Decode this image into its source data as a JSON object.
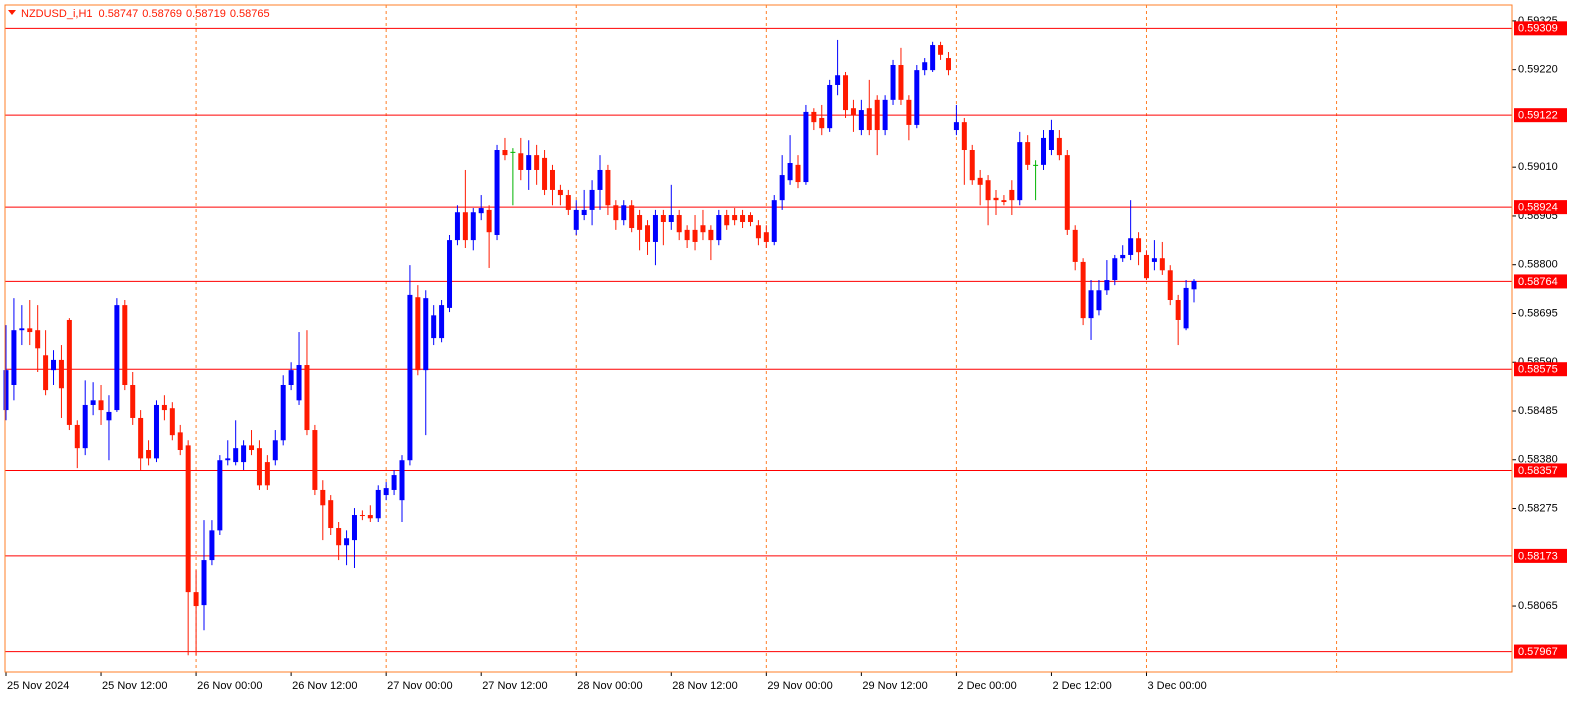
{
  "chart_data": {
    "type": "candlestick",
    "title": "NZDUSD_i,H1",
    "colors": {
      "up": "#0000ff",
      "down": "#ff1a00",
      "doji": "#00b400",
      "grid": "#ff7f27",
      "level": "#ff0000",
      "frame": "#ff7f27"
    },
    "grid": true,
    "categories": [
      "25 Nov 2024",
      null,
      null,
      null,
      null,
      null,
      null,
      null,
      null,
      null,
      null,
      null,
      "25 Nov 12:00",
      null,
      null,
      null,
      null,
      null,
      null,
      null,
      null,
      null,
      null,
      null,
      "26 Nov 00:00",
      null,
      null,
      null,
      null,
      null,
      null,
      null,
      null,
      null,
      null,
      null,
      "26 Nov 12:00",
      null,
      null,
      null,
      null,
      null,
      null,
      null,
      null,
      null,
      null,
      null,
      "27 Nov 00:00",
      null,
      null,
      null,
      null,
      null,
      null,
      null,
      null,
      null,
      null,
      null,
      "27 Nov 12:00",
      null,
      null,
      null,
      null,
      null,
      null,
      null,
      null,
      null,
      null,
      null,
      "28 Nov 00:00",
      null,
      null,
      null,
      null,
      null,
      null,
      null,
      null,
      null,
      null,
      null,
      "28 Nov 12:00",
      null,
      null,
      null,
      null,
      null,
      null,
      null,
      null,
      null,
      null,
      null,
      "29 Nov 00:00",
      null,
      null,
      null,
      null,
      null,
      null,
      null,
      null,
      null,
      null,
      null,
      "29 Nov 12:00",
      null,
      null,
      null,
      null,
      null,
      null,
      null,
      null,
      null,
      null,
      null,
      "2 Dec 00:00",
      null,
      null,
      null,
      null,
      null,
      null,
      null,
      null,
      null,
      null,
      null,
      "2 Dec 12:00",
      null,
      null,
      null,
      null,
      null,
      null,
      null,
      null,
      null,
      null,
      null,
      "3 Dec 00:00",
      null,
      null,
      null,
      null,
      null,
      null
    ],
    "open": [
      0.58487,
      0.58541,
      0.58659,
      0.58663,
      0.58659,
      0.58605,
      0.58573,
      0.58595,
      0.58681,
      0.58455,
      0.58405,
      0.58498,
      0.58508,
      0.58465,
      0.58487,
      0.58713,
      0.58541,
      0.5847,
      0.58401,
      0.58383,
      0.58498,
      0.58491,
      0.58439,
      0.58411,
      0.58095,
      0.58067,
      0.58164,
      0.58228,
      0.58379,
      0.58375,
      0.58375,
      0.58411,
      0.58405,
      0.58375,
      0.58379,
      0.58422,
      0.58541,
      0.58508,
      0.58584,
      0.58444,
      0.58315,
      0.58293,
      0.58233,
      0.58196,
      0.58207,
      0.58261,
      0.58261,
      0.58254,
      0.58304,
      0.58315,
      0.58293,
      0.58379,
      0.5873,
      0.58573,
      0.58642,
      0.58642,
      0.58707,
      0.58853,
      0.58913,
      0.58853,
      0.58911,
      0.58918,
      0.58864,
      0.59047,
      0.59043,
      0.5904,
      0.59004,
      0.59036,
      0.5903,
      0.59004,
      0.58961,
      0.5895,
      0.58875,
      0.58907,
      0.58918,
      0.58961,
      0.59004,
      0.58928,
      0.58896,
      0.58928,
      0.58907,
      0.58885,
      0.58849,
      0.58907,
      0.58892,
      0.58907,
      0.58875,
      0.58875,
      0.58885,
      0.58875,
      0.58853,
      0.58907,
      0.58907,
      0.58907,
      0.58907,
      0.58885,
      0.5887,
      0.58849,
      0.58939,
      0.58982,
      0.59015,
      0.58978,
      0.59129,
      0.59116,
      0.59094,
      0.59187,
      0.59208,
      0.59137,
      0.5909,
      0.59137,
      0.59155,
      0.5909,
      0.59155,
      0.5923,
      0.59155,
      0.59101,
      0.59219,
      0.59219,
      0.59273,
      0.59245,
      0.5909,
      0.59107,
      0.59047,
      0.58987,
      0.58982,
      0.58944,
      0.58939,
      0.58961,
      0.58939,
      0.59064,
      0.59015,
      0.59015,
      0.59047,
      0.59073,
      0.59036,
      0.58875,
      0.58806,
      0.58685,
      0.58702,
      0.58745,
      0.58767,
      0.58814,
      0.58821,
      0.58857,
      0.58821,
      0.58806,
      0.58814,
      0.58788,
      0.58724,
      0.58663,
      0.58747
    ],
    "high": [
      0.5867,
      0.58728,
      0.58713,
      0.58724,
      0.58713,
      0.58659,
      0.58616,
      0.58627,
      0.58685,
      0.58465,
      0.58551,
      0.58547,
      0.58541,
      0.58519,
      0.58728,
      0.58724,
      0.58569,
      0.58487,
      0.58422,
      0.58508,
      0.58519,
      0.58504,
      0.58455,
      0.58422,
      0.58142,
      0.5825,
      0.5825,
      0.5839,
      0.58422,
      0.58465,
      0.58422,
      0.58444,
      0.58422,
      0.5839,
      0.58444,
      0.58562,
      0.5859,
      0.58655,
      0.58659,
      0.58455,
      0.58336,
      0.58304,
      0.58246,
      0.58228,
      0.58276,
      0.58271,
      0.58282,
      0.58325,
      0.58332,
      0.58358,
      0.5839,
      0.58799,
      0.58756,
      0.58745,
      0.58713,
      0.58724,
      0.58864,
      0.58928,
      0.59004,
      0.58922,
      0.5895,
      0.58928,
      0.59058,
      0.59073,
      0.59051,
      0.59073,
      0.59068,
      0.59058,
      0.59047,
      0.59015,
      0.58972,
      0.58961,
      0.58939,
      0.58961,
      0.58982,
      0.59036,
      0.59015,
      0.58939,
      0.58939,
      0.58939,
      0.58918,
      0.58896,
      0.58918,
      0.58918,
      0.58972,
      0.58918,
      0.58885,
      0.58907,
      0.58918,
      0.58885,
      0.58918,
      0.58918,
      0.58922,
      0.58918,
      0.58913,
      0.58896,
      0.58885,
      0.5895,
      0.59036,
      0.59079,
      0.59036,
      0.59144,
      0.59137,
      0.59144,
      0.59198,
      0.59284,
      0.59215,
      0.59155,
      0.59155,
      0.59198,
      0.59165,
      0.59165,
      0.59241,
      0.59267,
      0.59165,
      0.5923,
      0.59245,
      0.5928,
      0.5928,
      0.59258,
      0.59144,
      0.59116,
      0.59058,
      0.59004,
      0.58993,
      0.58961,
      0.5895,
      0.58982,
      0.59086,
      0.59079,
      0.59025,
      0.5909,
      0.59112,
      0.5909,
      0.59047,
      0.58885,
      0.58814,
      0.58767,
      0.58767,
      0.5881,
      0.58821,
      0.58842,
      0.58939,
      0.5887,
      0.58831,
      0.58853,
      0.58849,
      0.58799,
      0.58735,
      0.58767,
      0.58769
    ],
    "low": [
      0.58465,
      0.58508,
      0.58627,
      0.58627,
      0.58569,
      0.58519,
      0.58541,
      0.5847,
      0.58444,
      0.58362,
      0.5839,
      0.58476,
      0.58455,
      0.58379,
      0.58483,
      0.5853,
      0.58455,
      0.58358,
      0.58368,
      0.58375,
      0.58465,
      0.58422,
      0.5839,
      0.57959,
      0.57959,
      0.58013,
      0.58153,
      0.58218,
      0.58368,
      0.58368,
      0.58358,
      0.5839,
      0.58315,
      0.58315,
      0.58368,
      0.58411,
      0.5853,
      0.58498,
      0.58433,
      0.58304,
      0.58207,
      0.58218,
      0.58164,
      0.58153,
      0.58147,
      0.5825,
      0.58246,
      0.58246,
      0.58293,
      0.58304,
      0.58246,
      0.58368,
      0.58562,
      0.58433,
      0.58627,
      0.58633,
      0.58698,
      0.58842,
      0.58836,
      0.58831,
      0.58896,
      0.58793,
      0.58853,
      0.59025,
      0.58928,
      0.58982,
      0.58961,
      0.58972,
      0.5895,
      0.58928,
      0.58928,
      0.58907,
      0.58864,
      0.58896,
      0.58885,
      0.58918,
      0.58907,
      0.58875,
      0.58885,
      0.5887,
      0.58831,
      0.58821,
      0.58799,
      0.58842,
      0.58875,
      0.58853,
      0.58836,
      0.58831,
      0.58853,
      0.5881,
      0.58842,
      0.58875,
      0.58885,
      0.58879,
      0.58883,
      0.58842,
      0.58836,
      0.58842,
      0.58918,
      0.58972,
      0.58965,
      0.58972,
      0.5909,
      0.59079,
      0.59086,
      0.59165,
      0.59116,
      0.59086,
      0.59079,
      0.59079,
      0.59036,
      0.59079,
      0.59144,
      0.59144,
      0.59068,
      0.59094,
      0.59208,
      0.59215,
      0.59241,
      0.59208,
      0.59079,
      0.58972,
      0.58972,
      0.58928,
      0.58885,
      0.58907,
      0.58928,
      0.58907,
      0.58928,
      0.59004,
      0.58939,
      0.59004,
      0.59036,
      0.59025,
      0.58864,
      0.58788,
      0.5867,
      0.58638,
      0.58691,
      0.58735,
      0.58756,
      0.58806,
      0.5881,
      0.58799,
      0.58767,
      0.58788,
      0.58778,
      0.58713,
      0.58627,
      0.58659,
      0.58719
    ],
    "close": [
      0.58573,
      0.58659,
      0.58663,
      0.58655,
      0.5862,
      0.5853,
      0.58595,
      0.58534,
      0.58455,
      0.58405,
      0.58498,
      0.58508,
      0.58487,
      0.58483,
      0.58713,
      0.58541,
      0.5847,
      0.58383,
      0.58383,
      0.58498,
      0.58487,
      0.58433,
      0.58401,
      0.58095,
      0.58065,
      0.58164,
      0.58228,
      0.58379,
      0.58383,
      0.58405,
      0.58411,
      0.58401,
      0.58325,
      0.58325,
      0.58422,
      0.58541,
      0.58573,
      0.58584,
      0.58444,
      0.58315,
      0.58282,
      0.58233,
      0.58196,
      0.58211,
      0.58261,
      0.58259,
      0.58254,
      0.58315,
      0.58319,
      0.58347,
      0.58379,
      0.58735,
      0.58573,
      0.58728,
      0.58691,
      0.58713,
      0.58853,
      0.58913,
      0.58853,
      0.58913,
      0.58922,
      0.5887,
      0.59047,
      0.59036,
      0.59043,
      0.59004,
      0.59036,
      0.59004,
      0.58961,
      0.58961,
      0.5895,
      0.58918,
      0.58918,
      0.58918,
      0.58961,
      0.59004,
      0.58928,
      0.58896,
      0.58928,
      0.58879,
      0.58875,
      0.58849,
      0.58907,
      0.58892,
      0.58907,
      0.5887,
      0.58853,
      0.58849,
      0.5887,
      0.58853,
      0.58907,
      0.58885,
      0.58896,
      0.58892,
      0.58892,
      0.58857,
      0.58849,
      0.58939,
      0.58993,
      0.59019,
      0.58978,
      0.59129,
      0.59107,
      0.59094,
      0.59187,
      0.59208,
      0.59133,
      0.59122,
      0.59133,
      0.5909,
      0.5909,
      0.59155,
      0.5923,
      0.59155,
      0.59101,
      0.59219,
      0.59236,
      0.59273,
      0.59252,
      0.59219,
      0.59107,
      0.59047,
      0.58982,
      0.58972,
      0.58939,
      0.58939,
      0.58935,
      0.58939,
      0.59064,
      0.59015,
      0.59015,
      0.59073,
      0.5909,
      0.59036,
      0.58875,
      0.58806,
      0.58685,
      0.58745,
      0.58745,
      0.58767,
      0.58814,
      0.58821,
      0.58857,
      0.58827,
      0.58771,
      0.58814,
      0.58788,
      0.58724,
      0.58681,
      0.5875,
      0.58765
    ],
    "ylim": [
      0.57923,
      0.5937
    ],
    "yticks": [
      0.59325,
      {
        "value": 0.5922,
        "label": "0.59220"
      },
      {
        "value": 0.5901,
        "label": "0.59010"
      },
      0.58905,
      {
        "value": 0.588,
        "label": "0.58800"
      },
      0.58695,
      {
        "value": 0.5859,
        "label": "0.58590"
      },
      0.58485,
      {
        "value": 0.5838,
        "label": "0.58380"
      },
      0.58275,
      0.58065
    ],
    "levels": [
      0.59309,
      0.59122,
      0.58924,
      0.58764,
      0.58575,
      0.58357,
      0.58173,
      0.57967
    ]
  }
}
